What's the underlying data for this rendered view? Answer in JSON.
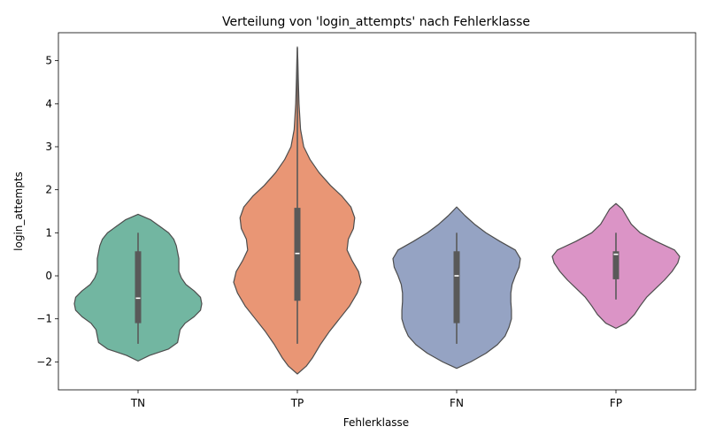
{
  "chart_data": {
    "type": "violin",
    "title": "Verteilung von 'login_attempts' nach Fehlerklasse",
    "xlabel": "Fehlerklasse",
    "ylabel": "login_attempts",
    "ylim": [
      -2.65,
      5.65
    ],
    "yticks": [
      -2,
      -1,
      0,
      1,
      2,
      3,
      4,
      5
    ],
    "ytick_labels": [
      "−2",
      "−1",
      "0",
      "1",
      "2",
      "3",
      "4",
      "5"
    ],
    "grid": false,
    "categories": [
      "TN",
      "TP",
      "FN",
      "FP"
    ],
    "colors": [
      "#72b6a1",
      "#e99675",
      "#95a3c3",
      "#db94c6"
    ],
    "violins": [
      {
        "category": "TN",
        "box": {
          "whisker_low": -1.58,
          "q1": -1.1,
          "median": -0.52,
          "q3": 0.57,
          "whisker_high": 1.0
        },
        "profile": [
          [
            -1.98,
            0.0
          ],
          [
            -1.85,
            0.18
          ],
          [
            -1.7,
            0.48
          ],
          [
            -1.55,
            0.62
          ],
          [
            -1.4,
            0.64
          ],
          [
            -1.25,
            0.66
          ],
          [
            -1.1,
            0.74
          ],
          [
            -0.95,
            0.88
          ],
          [
            -0.8,
            0.98
          ],
          [
            -0.65,
            1.0
          ],
          [
            -0.5,
            0.98
          ],
          [
            -0.35,
            0.88
          ],
          [
            -0.2,
            0.75
          ],
          [
            -0.05,
            0.68
          ],
          [
            0.1,
            0.64
          ],
          [
            0.25,
            0.64
          ],
          [
            0.4,
            0.64
          ],
          [
            0.55,
            0.62
          ],
          [
            0.7,
            0.6
          ],
          [
            0.85,
            0.56
          ],
          [
            1.0,
            0.48
          ],
          [
            1.15,
            0.34
          ],
          [
            1.3,
            0.2
          ],
          [
            1.43,
            0.0
          ]
        ]
      },
      {
        "category": "TP",
        "box": {
          "whisker_low": -1.58,
          "q1": -0.58,
          "median": 0.52,
          "q3": 1.58,
          "whisker_high": 5.3
        },
        "profile": [
          [
            -2.28,
            0.0
          ],
          [
            -2.1,
            0.14
          ],
          [
            -1.9,
            0.24
          ],
          [
            -1.6,
            0.36
          ],
          [
            -1.3,
            0.5
          ],
          [
            -1.0,
            0.66
          ],
          [
            -0.7,
            0.82
          ],
          [
            -0.4,
            0.94
          ],
          [
            -0.15,
            1.0
          ],
          [
            0.1,
            0.96
          ],
          [
            0.35,
            0.86
          ],
          [
            0.6,
            0.78
          ],
          [
            0.85,
            0.8
          ],
          [
            1.1,
            0.88
          ],
          [
            1.35,
            0.9
          ],
          [
            1.6,
            0.84
          ],
          [
            1.85,
            0.7
          ],
          [
            2.1,
            0.52
          ],
          [
            2.4,
            0.34
          ],
          [
            2.7,
            0.2
          ],
          [
            3.0,
            0.1
          ],
          [
            3.4,
            0.05
          ],
          [
            4.0,
            0.026
          ],
          [
            4.6,
            0.014
          ],
          [
            5.0,
            0.008
          ],
          [
            5.32,
            0.0
          ]
        ]
      },
      {
        "category": "FN",
        "box": {
          "whisker_low": -1.58,
          "q1": -1.1,
          "median": 0.0,
          "q3": 0.57,
          "whisker_high": 1.0
        },
        "profile": [
          [
            -2.15,
            0.0
          ],
          [
            -2.0,
            0.22
          ],
          [
            -1.8,
            0.46
          ],
          [
            -1.6,
            0.64
          ],
          [
            -1.4,
            0.76
          ],
          [
            -1.2,
            0.82
          ],
          [
            -1.0,
            0.86
          ],
          [
            -0.8,
            0.86
          ],
          [
            -0.6,
            0.85
          ],
          [
            -0.4,
            0.85
          ],
          [
            -0.2,
            0.87
          ],
          [
            0.0,
            0.92
          ],
          [
            0.2,
            0.98
          ],
          [
            0.4,
            1.0
          ],
          [
            0.6,
            0.92
          ],
          [
            0.8,
            0.68
          ],
          [
            1.0,
            0.46
          ],
          [
            1.2,
            0.28
          ],
          [
            1.4,
            0.13
          ],
          [
            1.6,
            0.0
          ]
        ]
      },
      {
        "category": "FP",
        "box": {
          "whisker_low": -0.55,
          "q1": -0.08,
          "median": 0.5,
          "q3": 0.57,
          "whisker_high": 1.0
        },
        "profile": [
          [
            -1.22,
            0.0
          ],
          [
            -1.1,
            0.16
          ],
          [
            -0.9,
            0.29
          ],
          [
            -0.7,
            0.38
          ],
          [
            -0.5,
            0.48
          ],
          [
            -0.3,
            0.62
          ],
          [
            -0.1,
            0.76
          ],
          [
            0.1,
            0.88
          ],
          [
            0.3,
            0.97
          ],
          [
            0.45,
            1.0
          ],
          [
            0.6,
            0.92
          ],
          [
            0.8,
            0.63
          ],
          [
            1.0,
            0.38
          ],
          [
            1.2,
            0.24
          ],
          [
            1.4,
            0.16
          ],
          [
            1.55,
            0.1
          ],
          [
            1.68,
            0.0
          ]
        ]
      }
    ]
  }
}
